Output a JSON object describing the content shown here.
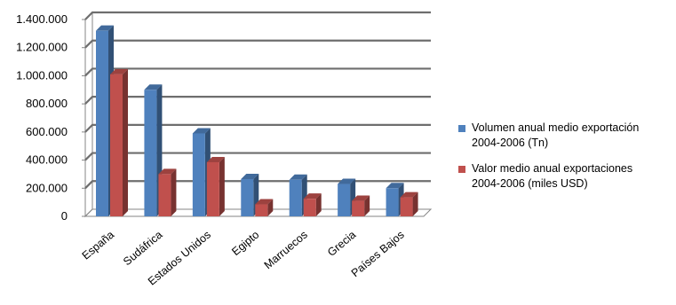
{
  "chart_data": {
    "type": "bar",
    "categories": [
      "España",
      "Sudáfrica",
      "Estados Unidos",
      "Egipto",
      "Marruecos",
      "Grecia",
      "Países Bajos"
    ],
    "series": [
      {
        "name": "Volumen anual medio exportación 2004-2006 (Tn)",
        "color": "#4f81bd",
        "values": [
          1320000,
          900000,
          590000,
          265000,
          260000,
          230000,
          200000
        ]
      },
      {
        "name": "Valor medio anual exportaciones 2004-2006 (miles USD)",
        "color": "#c0504d",
        "values": [
          1010000,
          300000,
          385000,
          85000,
          125000,
          110000,
          135000
        ]
      }
    ],
    "ylim": [
      0,
      1400000
    ],
    "yticks": [
      "0",
      "200.000",
      "400.000",
      "600.000",
      "800.000",
      "1.000.000",
      "1.200.000",
      "1.400.000"
    ],
    "grid": true,
    "legend_position": "right",
    "style": "3d-clustered-column"
  },
  "legend": {
    "items": [
      {
        "line1": "Volumen anual medio exportación",
        "line2": "2004-2006 (Tn)"
      },
      {
        "line1": "Valor medio anual exportaciones",
        "line2": "2004-2006 (miles USD)"
      }
    ]
  }
}
